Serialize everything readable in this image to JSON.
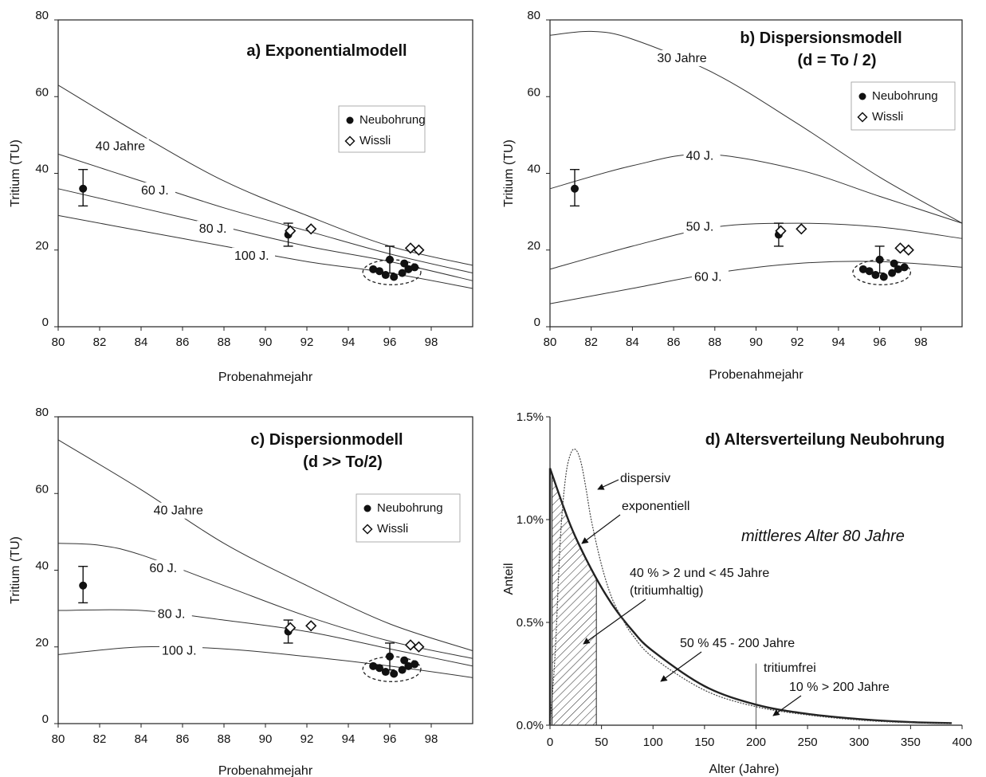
{
  "chart_data": [
    {
      "id": "a",
      "type": "line",
      "title": "a) Exponentialmodell",
      "title_line2": "",
      "xlabel": "Probenahmejahr",
      "ylabel": "Tritium (TU)",
      "xlim": [
        80,
        100
      ],
      "ylim": [
        0,
        80
      ],
      "xticks": [
        80,
        82,
        84,
        86,
        88,
        90,
        92,
        94,
        96,
        98
      ],
      "yticks": [
        0,
        20,
        40,
        60,
        80
      ],
      "legend": {
        "placement": "top-right",
        "entries": [
          "Neubohrung",
          "Wissli"
        ]
      },
      "series": [
        {
          "name": "40 Jahre",
          "x": [
            80,
            84,
            88,
            92,
            96,
            100
          ],
          "y": [
            63,
            50,
            38,
            29,
            21,
            16
          ],
          "label_at": [
            81.8,
            46
          ]
        },
        {
          "name": "60 J.",
          "x": [
            80,
            84,
            88,
            92,
            96,
            100
          ],
          "y": [
            45,
            38,
            31,
            25,
            19,
            14
          ],
          "label_at": [
            84.0,
            34.5
          ]
        },
        {
          "name": "80 J.",
          "x": [
            80,
            84,
            88,
            92,
            96,
            100
          ],
          "y": [
            36,
            31,
            26,
            21,
            17,
            12
          ],
          "label_at": [
            86.8,
            24.5
          ]
        },
        {
          "name": "100 J.",
          "x": [
            80,
            84,
            88,
            92,
            96,
            100
          ],
          "y": [
            29,
            25,
            21,
            17,
            14,
            10
          ],
          "label_at": [
            88.5,
            17.5
          ]
        }
      ],
      "neubohrung": [
        {
          "x": 81.2,
          "y": 36,
          "err": [
            31.5,
            41
          ]
        },
        {
          "x": 91.1,
          "y": 24,
          "err": [
            21,
            27
          ]
        },
        {
          "x": 96.0,
          "y": 17.5,
          "err": [
            14,
            21
          ]
        },
        {
          "x": 95.2,
          "y": 15
        },
        {
          "x": 95.5,
          "y": 14.5
        },
        {
          "x": 95.8,
          "y": 13.5
        },
        {
          "x": 96.2,
          "y": 13
        },
        {
          "x": 96.6,
          "y": 14
        },
        {
          "x": 96.9,
          "y": 15
        },
        {
          "x": 97.2,
          "y": 15.5
        },
        {
          "x": 96.7,
          "y": 16.5
        }
      ],
      "wissli": [
        {
          "x": 91.2,
          "y": 25
        },
        {
          "x": 92.2,
          "y": 25.5
        },
        {
          "x": 97.0,
          "y": 20.5
        },
        {
          "x": 97.4,
          "y": 20
        }
      ]
    },
    {
      "id": "b",
      "type": "line",
      "title": "b) Dispersionsmodell",
      "title_line2": "(d = To / 2)",
      "xlabel": "Probenahmejahr",
      "ylabel": "Tritium (TU)",
      "xlim": [
        80,
        100
      ],
      "ylim": [
        0,
        80
      ],
      "xticks": [
        80,
        82,
        84,
        86,
        88,
        90,
        92,
        94,
        96,
        98
      ],
      "yticks": [
        0,
        20,
        40,
        60,
        80
      ],
      "legend": {
        "placement": "top-right",
        "entries": [
          "Neubohrung",
          "Wissli"
        ]
      },
      "series": [
        {
          "name": "30 Jahre",
          "x": [
            80,
            82,
            84,
            88,
            92,
            96,
            100
          ],
          "y": [
            76,
            77,
            75,
            66,
            53,
            39,
            27
          ],
          "label_at": [
            85.2,
            69
          ]
        },
        {
          "name": "40 J.",
          "x": [
            80,
            84,
            87.5,
            92,
            96,
            100
          ],
          "y": [
            36,
            42,
            45,
            41,
            34,
            27
          ],
          "label_at": [
            86.6,
            43.5
          ]
        },
        {
          "name": "50 J.",
          "x": [
            80,
            84,
            88,
            92,
            96,
            100
          ],
          "y": [
            15,
            21,
            26,
            27,
            26,
            23
          ],
          "label_at": [
            86.6,
            25
          ]
        },
        {
          "name": "60 J.",
          "x": [
            80,
            84,
            88,
            92,
            96,
            100
          ],
          "y": [
            6,
            10,
            14,
            16.5,
            17,
            15.5
          ],
          "label_at": [
            87.0,
            12
          ]
        }
      ],
      "neubohrung": [
        {
          "x": 81.2,
          "y": 36,
          "err": [
            31.5,
            41
          ]
        },
        {
          "x": 91.1,
          "y": 24,
          "err": [
            21,
            27
          ]
        },
        {
          "x": 96.0,
          "y": 17.5,
          "err": [
            14,
            21
          ]
        },
        {
          "x": 95.2,
          "y": 15
        },
        {
          "x": 95.5,
          "y": 14.5
        },
        {
          "x": 95.8,
          "y": 13.5
        },
        {
          "x": 96.2,
          "y": 13
        },
        {
          "x": 96.6,
          "y": 14
        },
        {
          "x": 96.9,
          "y": 15
        },
        {
          "x": 97.2,
          "y": 15.5
        },
        {
          "x": 96.7,
          "y": 16.5
        }
      ],
      "wissli": [
        {
          "x": 91.2,
          "y": 25
        },
        {
          "x": 92.2,
          "y": 25.5
        },
        {
          "x": 97.0,
          "y": 20.5
        },
        {
          "x": 97.4,
          "y": 20
        }
      ]
    },
    {
      "id": "c",
      "type": "line",
      "title": "c) Dispersionmodell",
      "title_line2": "(d >> To/2)",
      "xlabel": "Probenahmejahr",
      "ylabel": "Tritium (TU)",
      "xlim": [
        80,
        100
      ],
      "ylim": [
        0,
        80
      ],
      "xticks": [
        80,
        82,
        84,
        86,
        88,
        90,
        92,
        94,
        96,
        98
      ],
      "yticks": [
        0,
        20,
        40,
        60,
        80
      ],
      "legend": {
        "placement": "top-right",
        "entries": [
          "Neubohrung",
          "Wissli"
        ]
      },
      "series": [
        {
          "name": "40 Jahre",
          "x": [
            80,
            84,
            88,
            92,
            96,
            100
          ],
          "y": [
            74,
            61,
            47,
            36,
            26,
            19
          ],
          "label_at": [
            84.6,
            54.5
          ]
        },
        {
          "name": "60 J.",
          "x": [
            80,
            82,
            84,
            88,
            92,
            96,
            100
          ],
          "y": [
            47,
            46.5,
            44,
            36,
            28,
            21.5,
            17
          ],
          "label_at": [
            84.4,
            39.5
          ]
        },
        {
          "name": "80 J.",
          "x": [
            80,
            84,
            88,
            92,
            96,
            100
          ],
          "y": [
            29.5,
            29.5,
            27,
            24,
            19.5,
            15
          ],
          "label_at": [
            84.8,
            27.5
          ]
        },
        {
          "name": "100 J.",
          "x": [
            80,
            84,
            88,
            92,
            96,
            100
          ],
          "y": [
            18,
            20,
            19.5,
            17.5,
            15,
            12
          ],
          "label_at": [
            85.0,
            18
          ]
        }
      ],
      "neubohrung": [
        {
          "x": 81.2,
          "y": 36,
          "err": [
            31.5,
            41
          ]
        },
        {
          "x": 91.1,
          "y": 24,
          "err": [
            21,
            27
          ]
        },
        {
          "x": 96.0,
          "y": 17.5,
          "err": [
            14,
            21
          ]
        },
        {
          "x": 95.2,
          "y": 15
        },
        {
          "x": 95.5,
          "y": 14.5
        },
        {
          "x": 95.8,
          "y": 13.5
        },
        {
          "x": 96.2,
          "y": 13
        },
        {
          "x": 96.6,
          "y": 14
        },
        {
          "x": 96.9,
          "y": 15
        },
        {
          "x": 97.2,
          "y": 15.5
        },
        {
          "x": 96.7,
          "y": 16.5
        }
      ],
      "wissli": [
        {
          "x": 91.2,
          "y": 25
        },
        {
          "x": 92.2,
          "y": 25.5
        },
        {
          "x": 97.0,
          "y": 20.5
        },
        {
          "x": 97.4,
          "y": 20
        }
      ]
    },
    {
      "id": "d",
      "type": "area",
      "title": "d) Altersverteilung Neubohrung",
      "xlabel": "Alter (Jahre)",
      "ylabel": "Anteil",
      "xlim": [
        0,
        400
      ],
      "ylim": [
        0,
        1.5
      ],
      "xticks": [
        0,
        50,
        100,
        150,
        200,
        250,
        300,
        350,
        400
      ],
      "ytick_values": [
        0,
        0.5,
        1.0,
        1.5
      ],
      "ytick_labels": [
        "0.0%",
        "0.5%",
        "1.0%",
        "1.5%"
      ],
      "series": [
        {
          "name": "exponentiell",
          "x": [
            0,
            20,
            40,
            60,
            80,
            100,
            150,
            200,
            250,
            300,
            350,
            390
          ],
          "y": [
            1.25,
            0.97,
            0.76,
            0.59,
            0.46,
            0.36,
            0.19,
            0.1,
            0.055,
            0.03,
            0.015,
            0.01
          ]
        },
        {
          "name": "dispersiv",
          "x": [
            0,
            5,
            10,
            15,
            20,
            25,
            30,
            35,
            40,
            50,
            60,
            70,
            80,
            100,
            150,
            200,
            250,
            300,
            350,
            390
          ],
          "y": [
            0,
            0.35,
            0.9,
            1.2,
            1.32,
            1.34,
            1.28,
            1.15,
            1.0,
            0.78,
            0.62,
            0.52,
            0.44,
            0.33,
            0.17,
            0.09,
            0.05,
            0.025,
            0.012,
            0.008
          ]
        }
      ],
      "hatched_range": [
        2,
        45
      ],
      "marker_x": 200,
      "annotations": {
        "mean_age": "mittleres Alter 80 Jahre",
        "dispersiv": "dispersiv",
        "exponentiell": "exponentiell",
        "tritium_line1": "40 % > 2 und < 45 Jahre",
        "tritium_line2": "(tritiumhaltig)",
        "mid": "50 % 45 - 200 Jahre",
        "free": "tritiumfrei",
        "old": "10 % > 200 Jahre"
      }
    }
  ]
}
